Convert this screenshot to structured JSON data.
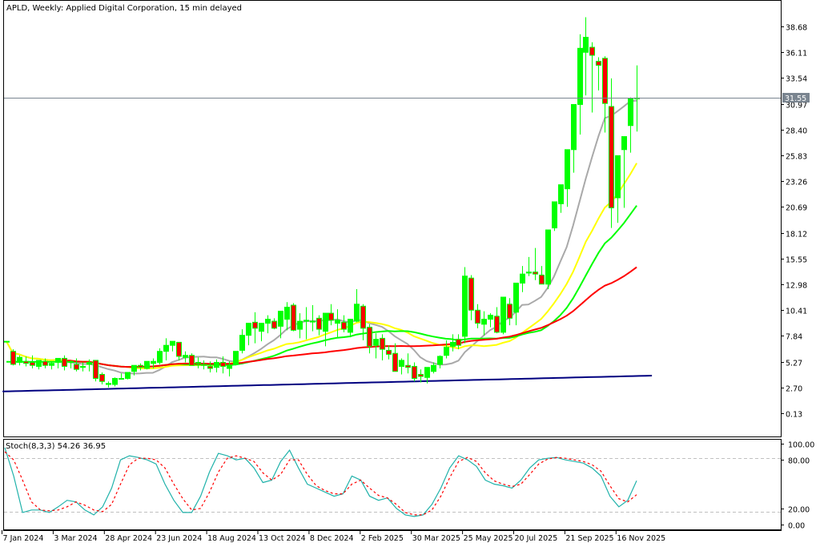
{
  "header": {
    "title": "APLD, Weekly:  Applied Digital Corporation, 15 min delayed"
  },
  "indicator": {
    "label": "Stoch(8,3,3) 54.26 36.95"
  },
  "current_price": {
    "label": "31.55",
    "value": 31.55,
    "color": "#7a8590"
  },
  "colors": {
    "bull_body": "#00ff00",
    "bear_body": "#ff0000",
    "wick": "#00ff00",
    "ma_gray": "#a9a9a9",
    "ma_yellow": "#ffff00",
    "ma_green": "#00ff00",
    "ma_red": "#ff0000",
    "ma_navy": "#000080",
    "stoch_main": "#20b2aa",
    "stoch_signal": "#ff0000",
    "level_line": "#c0c0c0"
  },
  "chart_data": [
    {
      "type": "candlestick",
      "title": "APLD, Weekly: Applied Digital Corporation, 15 min delayed",
      "xlabel": "",
      "ylabel": "",
      "ylim": [
        -2.0,
        41.0
      ],
      "y_ticks": [
        "38.68",
        "36.11",
        "33.54",
        "30.97",
        "28.40",
        "25.83",
        "23.26",
        "20.69",
        "18.12",
        "15.55",
        "12.98",
        "10.41",
        "7.84",
        "5.27",
        "2.70",
        "0.13"
      ],
      "x_ticks": [
        "7 Jan 2024",
        "3 Mar 2024",
        "28 Apr 2024",
        "23 Jun 2024",
        "18 Aug 2024",
        "13 Oct 2024",
        "8 Dec 2024",
        "2 Feb 2025",
        "30 Mar 2025",
        "25 May 2025",
        "20 Jul 2025",
        "21 Sep 2025",
        "16 Nov 2025"
      ],
      "last_price": 31.55,
      "candles": [
        [
          7.3,
          7.3,
          7.3,
          7.3
        ],
        [
          6.3,
          6.5,
          4.9,
          5.0
        ],
        [
          5.2,
          5.9,
          4.9,
          5.7
        ],
        [
          5.3,
          5.8,
          4.8,
          5.1
        ],
        [
          5.2,
          5.9,
          4.6,
          4.9
        ],
        [
          4.8,
          5.4,
          4.5,
          5.4
        ],
        [
          5.3,
          5.6,
          4.6,
          4.9
        ],
        [
          4.9,
          5.3,
          4.5,
          5.1
        ],
        [
          5.2,
          5.6,
          4.6,
          5.6
        ],
        [
          5.6,
          5.9,
          4.4,
          4.8
        ],
        [
          5.2,
          5.4,
          4.6,
          5.3
        ],
        [
          5.0,
          5.6,
          4.3,
          4.5
        ],
        [
          4.7,
          5.2,
          4.3,
          4.8
        ],
        [
          5.0,
          5.5,
          4.3,
          5.2
        ],
        [
          5.4,
          5.4,
          3.3,
          3.6
        ],
        [
          4.0,
          4.2,
          3.0,
          3.3
        ],
        [
          3.0,
          3.3,
          2.7,
          3.1
        ],
        [
          3.0,
          3.7,
          2.8,
          3.6
        ],
        [
          3.6,
          4.1,
          3.5,
          3.6
        ],
        [
          3.6,
          4.2,
          3.5,
          4.2
        ],
        [
          4.3,
          4.8,
          3.9,
          4.9
        ],
        [
          4.9,
          5.1,
          4.4,
          4.7
        ],
        [
          4.6,
          5.3,
          4.5,
          5.3
        ],
        [
          5.1,
          5.6,
          4.6,
          5.3
        ],
        [
          5.2,
          6.6,
          5.0,
          6.3
        ],
        [
          6.3,
          7.6,
          5.4,
          6.9
        ],
        [
          6.9,
          7.2,
          6.3,
          7.3
        ],
        [
          7.2,
          7.2,
          5.4,
          5.8
        ],
        [
          5.7,
          6.3,
          5.2,
          5.9
        ],
        [
          5.9,
          6.1,
          4.9,
          4.9
        ],
        [
          5.1,
          5.7,
          4.6,
          5.2
        ],
        [
          5.0,
          5.4,
          4.5,
          4.9
        ],
        [
          4.8,
          5.3,
          4.2,
          4.6
        ],
        [
          4.7,
          5.5,
          4.2,
          5.2
        ],
        [
          5.2,
          5.8,
          4.1,
          4.8
        ],
        [
          4.6,
          5.3,
          3.8,
          4.9
        ],
        [
          5.0,
          6.2,
          4.9,
          6.3
        ],
        [
          6.4,
          8.5,
          6.1,
          7.9
        ],
        [
          7.9,
          8.9,
          6.9,
          9.1
        ],
        [
          9.2,
          10.2,
          7.1,
          8.6
        ],
        [
          8.3,
          9.0,
          7.3,
          9.1
        ],
        [
          9.1,
          9.9,
          8.1,
          9.5
        ],
        [
          9.3,
          9.6,
          8.5,
          8.6
        ],
        [
          8.8,
          9.7,
          7.6,
          10.3
        ],
        [
          9.5,
          11.2,
          8.4,
          10.7
        ],
        [
          10.9,
          11.1,
          8.3,
          8.4
        ],
        [
          8.5,
          10.1,
          7.6,
          9.3
        ],
        [
          9.3,
          10.7,
          7.5,
          9.4
        ],
        [
          9.3,
          10.9,
          8.3,
          9.3
        ],
        [
          9.6,
          9.9,
          7.9,
          8.5
        ],
        [
          8.3,
          10.0,
          6.8,
          10.1
        ],
        [
          10.1,
          11.0,
          8.9,
          9.4
        ],
        [
          9.1,
          10.5,
          7.7,
          9.4
        ],
        [
          9.2,
          9.9,
          8.2,
          8.5
        ],
        [
          8.2,
          9.3,
          7.7,
          9.5
        ],
        [
          9.3,
          12.5,
          9.2,
          11.0
        ],
        [
          10.8,
          11.0,
          7.4,
          8.6
        ],
        [
          8.7,
          9.0,
          6.1,
          6.8
        ],
        [
          6.9,
          8.1,
          5.6,
          7.5
        ],
        [
          7.6,
          8.0,
          5.4,
          6.5
        ],
        [
          6.4,
          6.9,
          5.5,
          6.0
        ],
        [
          6.1,
          7.1,
          4.5,
          4.3
        ],
        [
          4.8,
          5.6,
          4.0,
          5.4
        ],
        [
          4.9,
          6.1,
          4.1,
          4.7
        ],
        [
          4.8,
          5.2,
          3.3,
          3.6
        ],
        [
          4.0,
          4.5,
          3.2,
          3.8
        ],
        [
          3.7,
          4.7,
          3.1,
          4.7
        ],
        [
          4.3,
          5.2,
          4.1,
          4.9
        ],
        [
          5.0,
          5.9,
          4.6,
          5.8
        ],
        [
          5.9,
          7.4,
          5.6,
          6.7
        ],
        [
          6.8,
          8.0,
          6.3,
          7.2
        ],
        [
          7.5,
          8.0,
          6.5,
          6.9
        ],
        [
          7.8,
          14.7,
          7.1,
          13.8
        ],
        [
          13.6,
          13.9,
          9.4,
          10.4
        ],
        [
          10.4,
          11.0,
          8.6,
          9.1
        ],
        [
          9.0,
          10.3,
          7.9,
          9.5
        ],
        [
          9.5,
          10.1,
          8.7,
          9.9
        ],
        [
          9.8,
          10.7,
          8.1,
          8.2
        ],
        [
          8.2,
          11.7,
          8.0,
          11.7
        ],
        [
          11.0,
          11.6,
          8.9,
          9.6
        ],
        [
          10.2,
          12.6,
          8.9,
          13.1
        ],
        [
          13.1,
          14.8,
          12.2,
          14.0
        ],
        [
          14.1,
          15.7,
          13.8,
          14.2
        ],
        [
          14.2,
          16.6,
          13.4,
          14.0
        ],
        [
          13.9,
          14.8,
          13.1,
          13.0
        ],
        [
          13.0,
          17.9,
          12.5,
          18.4
        ],
        [
          18.6,
          20.7,
          18.3,
          21.2
        ],
        [
          21.0,
          21.7,
          20.1,
          22.9
        ],
        [
          22.5,
          25.8,
          20.7,
          26.4
        ],
        [
          26.4,
          30.0,
          24.1,
          30.9
        ],
        [
          30.9,
          37.9,
          27.9,
          36.5
        ],
        [
          36.1,
          39.6,
          31.8,
          37.6
        ],
        [
          36.6,
          37.1,
          30.1,
          35.8
        ],
        [
          35.2,
          35.6,
          32.3,
          34.8
        ],
        [
          35.5,
          35.7,
          28.1,
          31.0
        ],
        [
          30.7,
          33.5,
          18.6,
          20.6
        ],
        [
          21.6,
          23.9,
          19.1,
          25.8
        ],
        [
          26.4,
          27.0,
          20.6,
          27.7
        ],
        [
          28.8,
          31.6,
          26.1,
          31.5
        ],
        [
          31.5,
          34.8,
          28.2,
          31.55
        ]
      ],
      "series": [
        {
          "name": "MA gray (fast)",
          "color": "#a9a9a9"
        },
        {
          "name": "MA yellow",
          "color": "#ffff00"
        },
        {
          "name": "MA green",
          "color": "#00ff00"
        },
        {
          "name": "MA red",
          "color": "#ff0000"
        },
        {
          "name": "MA navy (long)",
          "color": "#000080"
        }
      ]
    },
    {
      "type": "line",
      "title": "Stoch(8,3,3) 54.26 36.95",
      "ylim": [
        0,
        100
      ],
      "y_ticks": [
        "100.00",
        "80.00",
        "20.00",
        "0.00"
      ],
      "levels": [
        80,
        20
      ],
      "series": [
        {
          "name": "%K",
          "color": "#20b2aa",
          "last": 54.26
        },
        {
          "name": "%D",
          "color": "#ff0000",
          "style": "dashed",
          "last": 36.95
        }
      ]
    }
  ]
}
